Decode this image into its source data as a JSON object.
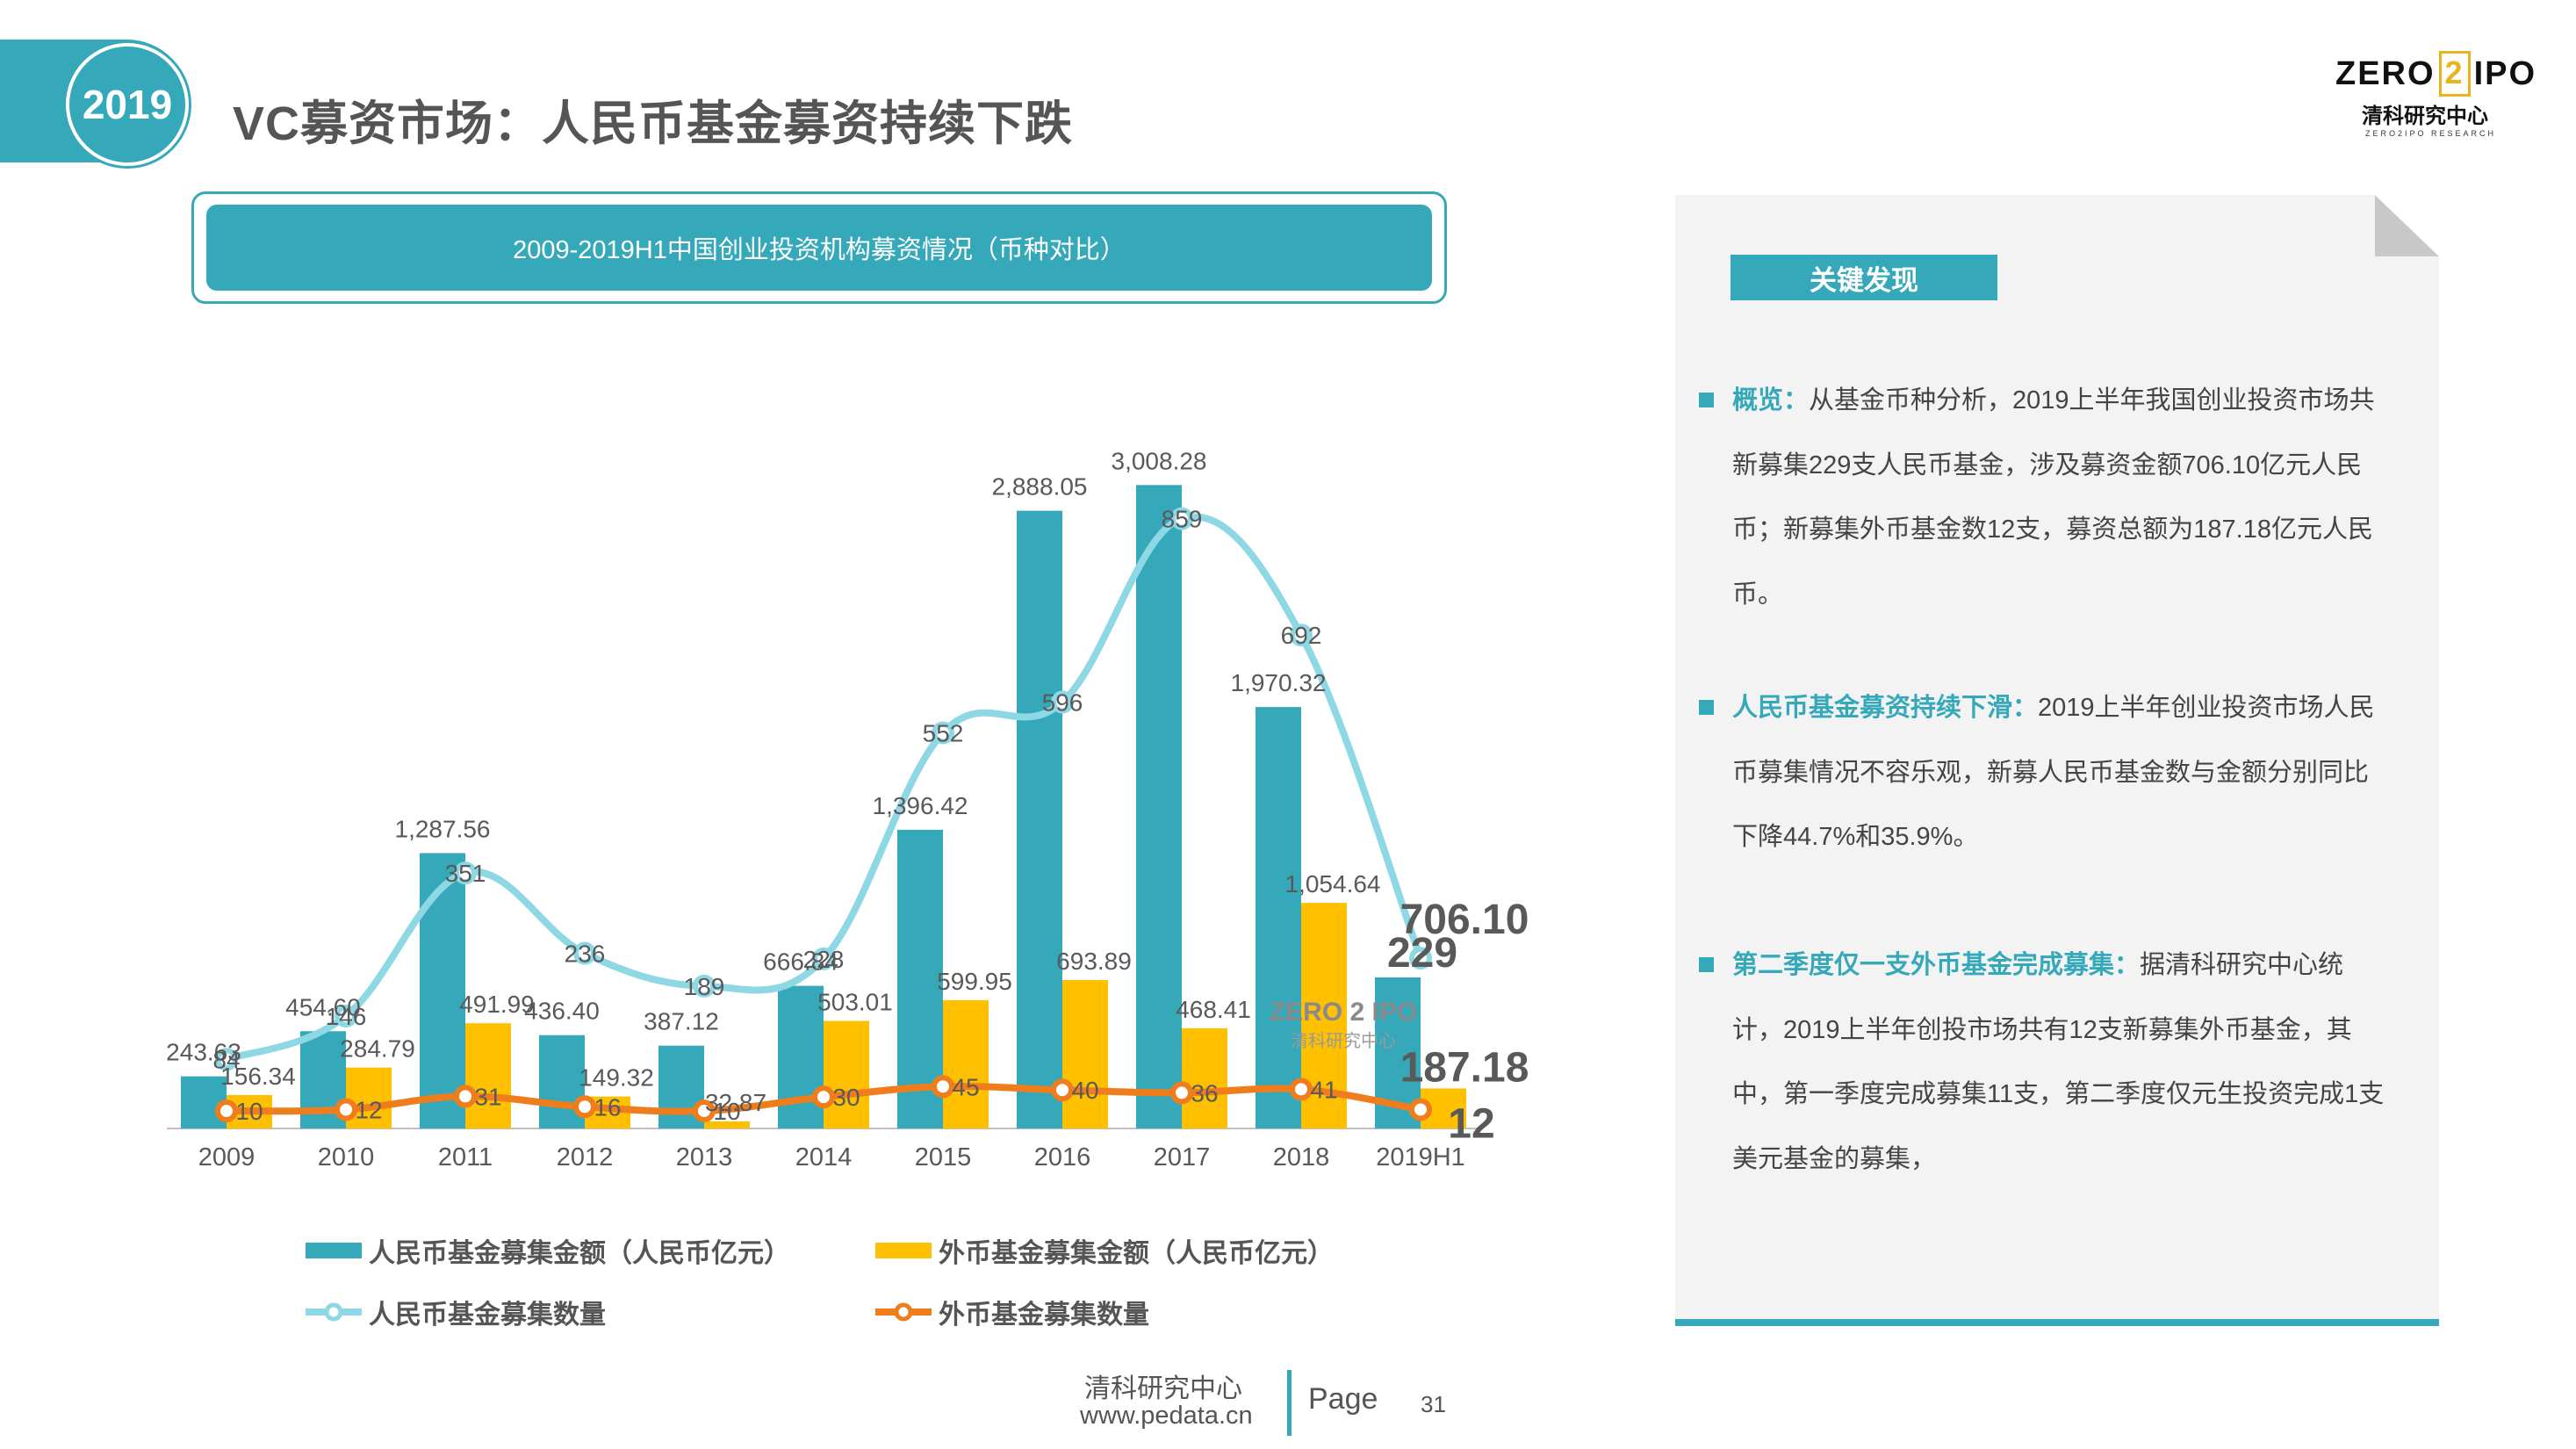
{
  "header": {
    "year": "2019",
    "title": "VC募资市场：人民币基金募资持续下跌",
    "logo_top_left": "ZERO",
    "logo_box": "2",
    "logo_top_right": "IPO",
    "logo_sub": "清科研究中心",
    "logo_small": "ZERO2IPO RESEARCH"
  },
  "chart_banner": "2009-2019H1中国创业投资机构募资情况（币种对比）",
  "chart_data": {
    "type": "bar",
    "categories": [
      "2009",
      "2010",
      "2011",
      "2012",
      "2013",
      "2014",
      "2015",
      "2016",
      "2017",
      "2018",
      "2019H1"
    ],
    "series": [
      {
        "name": "人民币基金募集金额（人民币亿元）",
        "kind": "bar",
        "color": "#35a9b9",
        "values": [
          243.63,
          454.6,
          1287.56,
          436.4,
          387.12,
          666.84,
          1396.42,
          2888.05,
          3008.28,
          1970.32,
          706.1
        ],
        "labels": [
          "243.63",
          "454.60",
          "1,287.56",
          "436.40",
          "387.12",
          "666.84",
          "1,396.42",
          "2,888.05",
          "3,008.28",
          "1,970.32",
          "706.10"
        ]
      },
      {
        "name": "外币基金募集金额（人民币亿元）",
        "kind": "bar",
        "color": "#ffc000",
        "values": [
          156.34,
          284.79,
          491.99,
          149.32,
          32.87,
          503.01,
          599.95,
          693.89,
          468.41,
          1054.64,
          187.18
        ],
        "labels": [
          "156.34",
          "284.79",
          "491.99",
          "149.32",
          "32.87",
          "503.01",
          "599.95",
          "693.89",
          "468.41",
          "1,054.64",
          "187.18"
        ]
      },
      {
        "name": "人民币基金募集数量",
        "kind": "line",
        "color": "#8dd8e4",
        "values": [
          84,
          146,
          351,
          236,
          189,
          228,
          552,
          596,
          859,
          692,
          229
        ]
      },
      {
        "name": "外币基金募集数量",
        "kind": "line",
        "color": "#f07d1c",
        "values": [
          10,
          12,
          31,
          16,
          10,
          30,
          45,
          40,
          36,
          41,
          12
        ]
      }
    ],
    "ylim_bar": [
      0,
      3100
    ],
    "ylim_line": [
      0,
      900
    ]
  },
  "legend": {
    "rmb_amount": "人民币基金募集金额（人民币亿元）",
    "fx_amount": "外币基金募集金额（人民币亿元）",
    "rmb_count": "人民币基金募集数量",
    "fx_count": "外币基金募集数量"
  },
  "panel": {
    "tag": "关键发现",
    "f1_head": "概览：",
    "f1_body": "从基金币种分析，2019上半年我国创业投资市场共新募集229支人民币基金，涉及募资金额706.10亿元人民币；新募集外币基金数12支，募资总额为187.18亿元人民币。",
    "f2_head": "人民币基金募资持续下滑：",
    "f2_body": "2019上半年创业投资市场人民币募集情况不容乐观，新募人民币基金数与金额分别同比下降44.7%和35.9%。",
    "f3_head": "第二季度仅一支外币基金完成募集：",
    "f3_body": "据清科研究中心统计，2019上半年创投市场共有12支新募集外币基金，其中，第一季度完成募集11支，第二季度仅元生投资完成1支美元基金的募集，"
  },
  "footer": {
    "org": "清科研究中心",
    "url": "www.pedata.cn",
    "page_label": "Page",
    "page_number": "31"
  },
  "colors": {
    "accent": "#35a9b9",
    "gold": "#ffc000",
    "orange": "#f07d1c",
    "light_cyan": "#8dd8e4"
  }
}
